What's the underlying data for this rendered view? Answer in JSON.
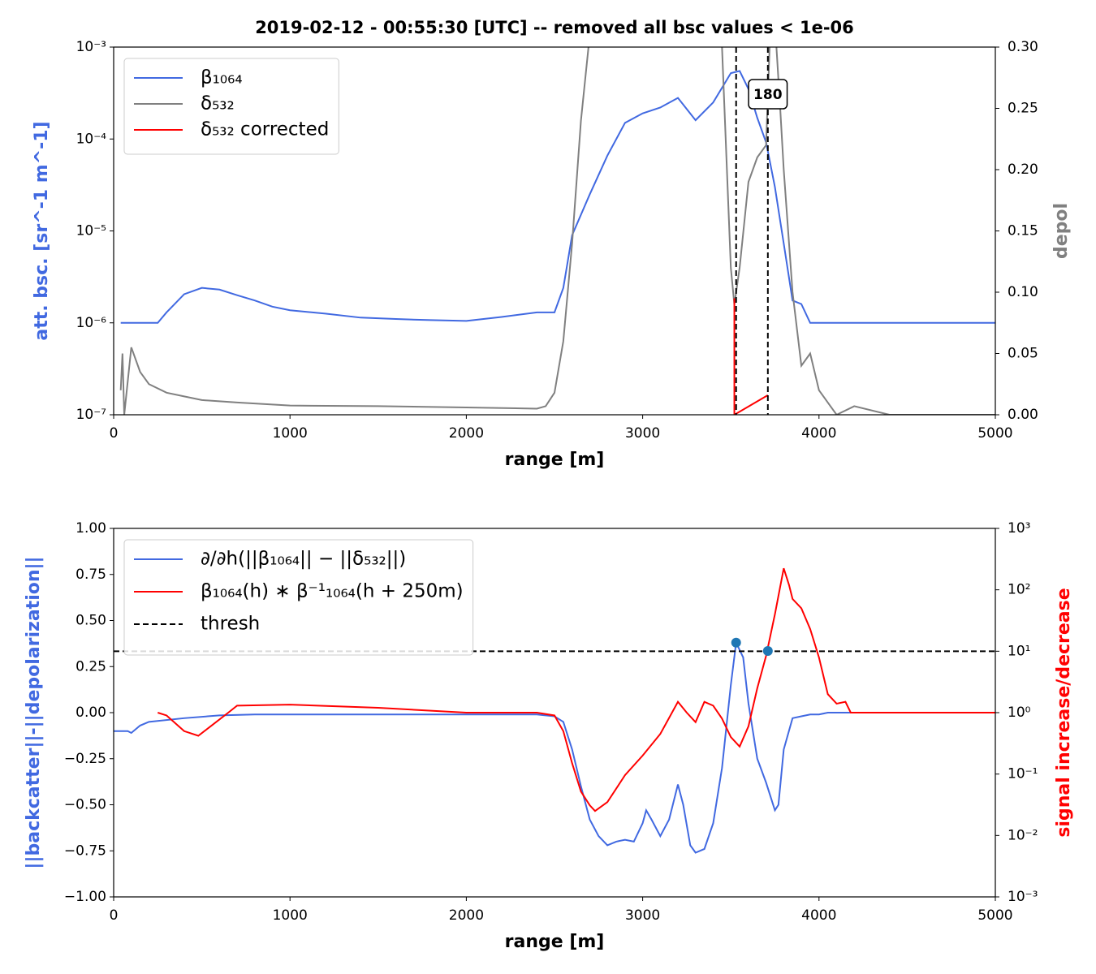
{
  "chart_data": [
    {
      "type": "line",
      "title": "2019-02-12 - 00:55:30 [UTC] -- removed all bsc values < 1e-06",
      "xlabel": "range [m]",
      "ylabel": "att. bsc. [sr^-1 m^-1]",
      "y2label": "depol",
      "xlim": [
        0,
        5000
      ],
      "xticks": [
        0,
        1000,
        2000,
        3000,
        4000,
        5000
      ],
      "ylim": [
        1e-07,
        0.001
      ],
      "yscale": "log",
      "yticks": [
        {
          "value": 1e-07,
          "label": "10⁻⁷"
        },
        {
          "value": 1e-06,
          "label": "10⁻⁶"
        },
        {
          "value": 1e-05,
          "label": "10⁻⁵"
        },
        {
          "value": 0.0001,
          "label": "10⁻⁴"
        },
        {
          "value": 0.001,
          "label": "10⁻³"
        }
      ],
      "y2lim": [
        0,
        0.3
      ],
      "y2scale": "linear",
      "y2ticks": [
        {
          "value": 0,
          "label": "0.00"
        },
        {
          "value": 0.05,
          "label": "0.05"
        },
        {
          "value": 0.1,
          "label": "0.10"
        },
        {
          "value": 0.15,
          "label": "0.15"
        },
        {
          "value": 0.2,
          "label": "0.20"
        },
        {
          "value": 0.25,
          "label": "0.25"
        },
        {
          "value": 0.3,
          "label": "0.30"
        }
      ],
      "ylabel_color": "#4169e1",
      "y2label_color": "#808080",
      "legend": "upper left",
      "series": [
        {
          "name": "β₁₀₆₄",
          "color": "#4169e1",
          "axis": "y",
          "x": [
            40,
            100,
            250,
            300,
            400,
            500,
            600,
            700,
            800,
            900,
            1000,
            1200,
            1400,
            1600,
            1800,
            2000,
            2200,
            2400,
            2500,
            2550,
            2600,
            2650,
            2700,
            2800,
            2900,
            3000,
            3100,
            3200,
            3300,
            3400,
            3500,
            3550,
            3600,
            3650,
            3700,
            3750,
            3800,
            3850,
            3900,
            3950,
            4000,
            5000
          ],
          "values": [
            1e-06,
            1e-06,
            1e-06,
            1.3e-06,
            2.05e-06,
            2.4e-06,
            2.3e-06,
            2e-06,
            1.75e-06,
            1.5e-06,
            1.37e-06,
            1.26e-06,
            1.14e-06,
            1.1e-06,
            1.07e-06,
            1.05e-06,
            1.16e-06,
            1.3e-06,
            1.3e-06,
            2.4e-06,
            9e-06,
            1.5e-05,
            2.5e-05,
            6.6e-05,
            0.00015,
            0.00019,
            0.00022,
            0.00028,
            0.00016,
            0.00025,
            0.00052,
            0.00055,
            0.00035,
            0.00017,
            9.2e-05,
            3e-05,
            7.3e-06,
            1.75e-06,
            1.6e-06,
            1e-06,
            1e-06,
            1e-06
          ]
        },
        {
          "name": "δ₅₃₂",
          "color": "#808080",
          "axis": "y2",
          "x": [
            40,
            50,
            60,
            100,
            150,
            200,
            300,
            400,
            500,
            700,
            1000,
            1500,
            2000,
            2400,
            2450,
            2500,
            2550,
            2600,
            2650,
            2700,
            3000,
            3450,
            3500,
            3520,
            3550,
            3600,
            3650,
            3700,
            3720,
            3750,
            3780,
            3800,
            3850,
            3900,
            3950,
            4000,
            4050,
            4100,
            4200,
            4400,
            5000
          ],
          "values": [
            0.02,
            0.05,
            0.0,
            0.055,
            0.035,
            0.025,
            0.018,
            0.015,
            0.012,
            0.01,
            0.0075,
            0.007,
            0.006,
            0.005,
            0.007,
            0.018,
            0.06,
            0.14,
            0.24,
            0.31,
            0.35,
            0.3,
            0.12,
            0.09,
            0.12,
            0.19,
            0.21,
            0.22,
            0.3,
            0.32,
            0.25,
            0.2,
            0.1,
            0.04,
            0.05,
            0.02,
            0.01,
            0.0,
            0.007,
            0.0,
            0.0
          ]
        },
        {
          "name": "δ₅₃₂ corrected",
          "color": "#ff0000",
          "axis": "y2",
          "x": [
            3520,
            3520,
            3710
          ],
          "values": [
            0.095,
            0,
            0.016
          ]
        }
      ],
      "vlines": [
        3530,
        3710
      ],
      "annotation": "180"
    },
    {
      "type": "line",
      "xlabel": "range [m]",
      "ylabel": "||backcatter||-||depolarization||",
      "y2label": "signal increase/decrease",
      "xlim": [
        0,
        5000
      ],
      "xticks": [
        0,
        1000,
        2000,
        3000,
        4000,
        5000
      ],
      "ylim": [
        -1,
        1
      ],
      "yscale": "linear",
      "yticks": [
        {
          "value": -1,
          "label": "−1.00"
        },
        {
          "value": -0.75,
          "label": "−0.75"
        },
        {
          "value": -0.5,
          "label": "−0.50"
        },
        {
          "value": -0.25,
          "label": "−0.25"
        },
        {
          "value": 0,
          "label": "0.00"
        },
        {
          "value": 0.25,
          "label": "0.25"
        },
        {
          "value": 0.5,
          "label": "0.50"
        },
        {
          "value": 0.75,
          "label": "0.75"
        },
        {
          "value": 1,
          "label": "1.00"
        }
      ],
      "y2lim": [
        0.001,
        1000
      ],
      "y2scale": "log",
      "y2ticks": [
        {
          "value": 0.001,
          "label": "10⁻³"
        },
        {
          "value": 0.01,
          "label": "10⁻²"
        },
        {
          "value": 0.1,
          "label": "10⁻¹"
        },
        {
          "value": 1,
          "label": "10⁰"
        },
        {
          "value": 10,
          "label": "10¹"
        },
        {
          "value": 100,
          "label": "10²"
        },
        {
          "value": 1000,
          "label": "10³"
        }
      ],
      "ylabel_color": "#4169e1",
      "y2label_color": "#ff0000",
      "legend": "upper left",
      "series": [
        {
          "name": "∂/∂h(||β₁₀₆₄|| − ||δ₅₃₂||)",
          "color": "#4169e1",
          "axis": "y",
          "x": [
            0,
            80,
            100,
            150,
            200,
            400,
            600,
            800,
            2400,
            2500,
            2550,
            2600,
            2650,
            2700,
            2750,
            2800,
            2850,
            2900,
            2950,
            3000,
            3020,
            3050,
            3100,
            3150,
            3200,
            3230,
            3270,
            3300,
            3350,
            3400,
            3450,
            3500,
            3530,
            3570,
            3600,
            3650,
            3700,
            3750,
            3770,
            3800,
            3850,
            3900,
            3950,
            4000,
            4050,
            5000
          ],
          "values": [
            -0.1,
            -0.1,
            -0.11,
            -0.07,
            -0.05,
            -0.03,
            -0.015,
            -0.01,
            -0.01,
            -0.02,
            -0.05,
            -0.2,
            -0.4,
            -0.58,
            -0.67,
            -0.72,
            -0.7,
            -0.69,
            -0.7,
            -0.6,
            -0.53,
            -0.58,
            -0.67,
            -0.58,
            -0.39,
            -0.5,
            -0.72,
            -0.76,
            -0.74,
            -0.6,
            -0.3,
            0.15,
            0.38,
            0.3,
            0.05,
            -0.25,
            -0.38,
            -0.53,
            -0.5,
            -0.2,
            -0.03,
            -0.02,
            -0.01,
            -0.01,
            0.0,
            0.0
          ]
        },
        {
          "name": "β₁₀₆₄(h) ∗ β⁻¹₁₀₆₄(h + 250m)",
          "color": "#ff0000",
          "axis": "y2",
          "x": [
            250,
            300,
            400,
            480,
            550,
            650,
            700,
            1000,
            1500,
            2000,
            2400,
            2500,
            2550,
            2600,
            2650,
            2700,
            2730,
            2800,
            2900,
            3000,
            3100,
            3200,
            3250,
            3300,
            3350,
            3400,
            3450,
            3500,
            3550,
            3600,
            3650,
            3700,
            3750,
            3800,
            3830,
            3850,
            3900,
            3950,
            4000,
            4050,
            4100,
            4150,
            4180,
            5000
          ],
          "values": [
            1.0,
            0.9,
            0.5,
            0.42,
            0.6,
            1.0,
            1.3,
            1.35,
            1.2,
            1.0,
            1.0,
            0.9,
            0.5,
            0.15,
            0.052,
            0.031,
            0.025,
            0.035,
            0.096,
            0.2,
            0.45,
            1.5,
            1.0,
            0.7,
            1.5,
            1.3,
            0.8,
            0.4,
            0.28,
            0.6,
            2.5,
            8.4,
            40,
            224,
            120,
            71,
            50,
            23,
            7.9,
            2,
            1.4,
            1.5,
            1.0,
            1.0
          ]
        },
        {
          "name": "thresh",
          "color": "#000000",
          "axis": "y2",
          "dashed": true,
          "x": [
            0,
            5000
          ],
          "values": [
            10,
            10
          ]
        }
      ],
      "points": {
        "color": "#1f77b4",
        "x": [
          3530,
          3710
        ],
        "values": [
          0.38,
          0.335
        ]
      }
    }
  ]
}
